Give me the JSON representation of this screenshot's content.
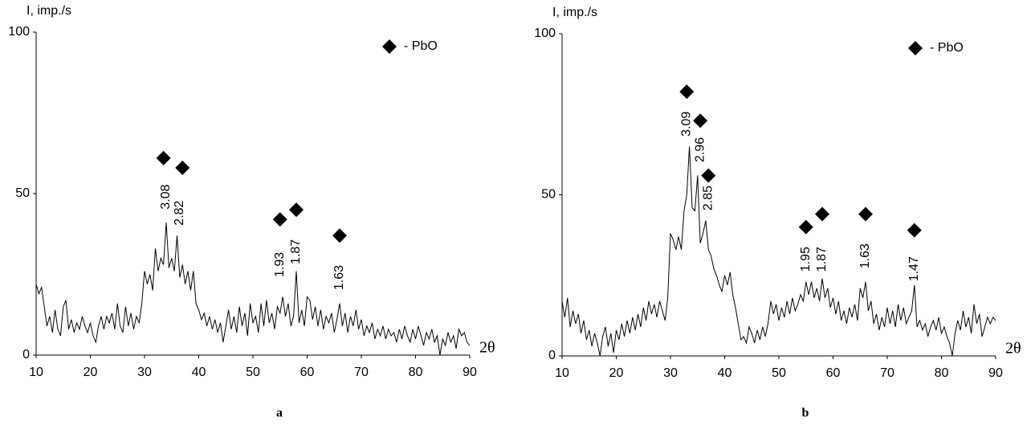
{
  "chart_data": [
    {
      "type": "line",
      "caption": "a",
      "y_label": "I, imp./s",
      "x_label": "2θ",
      "legend_label": "- PbO",
      "color": "#000000",
      "xlim": [
        10,
        90
      ],
      "ylim": [
        0,
        100
      ],
      "xticks": [
        10,
        20,
        30,
        40,
        50,
        60,
        70,
        80,
        90
      ],
      "yticks": [
        0,
        50,
        100
      ],
      "x": [
        10,
        10.5,
        11,
        11.5,
        12,
        12.5,
        13,
        13.5,
        14,
        14.5,
        15,
        15.5,
        16,
        16.5,
        17,
        17.5,
        18,
        18.5,
        19,
        19.5,
        20,
        20.5,
        21,
        21.5,
        22,
        22.5,
        23,
        23.5,
        24,
        24.5,
        25,
        25.5,
        26,
        26.5,
        27,
        27.5,
        28,
        28.5,
        29,
        29.5,
        30,
        30.5,
        31,
        31.5,
        32,
        32.5,
        33,
        33.5,
        34,
        34.5,
        35,
        35.5,
        36,
        36.5,
        37,
        37.5,
        38,
        38.5,
        39,
        39.5,
        40,
        40.5,
        41,
        41.5,
        42,
        42.5,
        43,
        43.5,
        44,
        44.5,
        45,
        45.5,
        46,
        46.5,
        47,
        47.5,
        48,
        48.5,
        49,
        49.5,
        50,
        50.5,
        51,
        51.5,
        52,
        52.5,
        53,
        53.5,
        54,
        54.5,
        55,
        55.5,
        56,
        56.5,
        57,
        57.5,
        58,
        58.5,
        59,
        59.5,
        60,
        60.5,
        61,
        61.5,
        62,
        62.5,
        63,
        63.5,
        64,
        64.5,
        65,
        65.5,
        66,
        66.5,
        67,
        67.5,
        68,
        68.5,
        69,
        69.5,
        70,
        70.5,
        71,
        71.5,
        72,
        72.5,
        73,
        73.5,
        74,
        74.5,
        75,
        75.5,
        76,
        76.5,
        77,
        77.5,
        78,
        78.5,
        79,
        79.5,
        80,
        80.5,
        81,
        81.5,
        82,
        82.5,
        83,
        83.5,
        84,
        84.5,
        85,
        85.5,
        86,
        86.5,
        87,
        87.5,
        88,
        88.5,
        89,
        89.5,
        90
      ],
      "values": [
        22,
        19,
        21,
        15,
        9,
        12,
        7,
        14,
        8,
        6,
        15,
        17,
        8,
        11,
        7,
        10,
        8,
        12,
        9,
        7,
        10,
        6,
        4,
        9,
        12,
        8,
        12,
        10,
        13,
        8,
        16,
        9,
        7,
        15,
        9,
        13,
        8,
        12,
        10,
        16,
        26,
        22,
        25,
        20,
        33,
        26,
        30,
        28,
        41,
        27,
        30,
        26,
        37,
        24,
        28,
        22,
        26,
        20,
        26,
        16,
        14,
        11,
        13,
        9,
        12,
        8,
        11,
        7,
        10,
        4,
        9,
        14,
        8,
        12,
        7,
        15,
        9,
        13,
        6,
        16,
        10,
        12,
        7,
        16,
        9,
        17,
        10,
        13,
        8,
        15,
        13,
        18,
        12,
        16,
        9,
        12,
        26,
        10,
        14,
        9,
        18,
        17,
        11,
        15,
        9,
        14,
        8,
        12,
        10,
        13,
        7,
        11,
        16,
        9,
        13,
        7,
        12,
        9,
        14,
        8,
        11,
        6,
        9,
        7,
        10,
        5,
        8,
        6,
        9,
        5,
        8,
        6,
        7,
        4,
        8,
        5,
        9,
        6,
        4,
        8,
        5,
        9,
        6,
        3,
        7,
        5,
        8,
        4,
        6,
        0,
        5,
        3,
        7,
        4,
        6,
        2,
        8,
        6,
        7,
        4,
        3
      ],
      "markers": [
        {
          "x": 33.5,
          "y": 61
        },
        {
          "x": 37,
          "y": 58
        },
        {
          "x": 55,
          "y": 42
        },
        {
          "x": 58,
          "y": 45
        },
        {
          "x": 66,
          "y": 37
        }
      ],
      "peak_labels": [
        {
          "x": 34,
          "y": 49,
          "label": 3.08
        },
        {
          "x": 36.5,
          "y": 44,
          "label": 2.82
        },
        {
          "x": 55,
          "y": 28,
          "label": 1.93
        },
        {
          "x": 58,
          "y": 32,
          "label": 1.87
        },
        {
          "x": 66,
          "y": 24,
          "label": 1.63
        }
      ]
    },
    {
      "type": "line",
      "caption": "b",
      "y_label": "I, imp./s",
      "x_label": "2θ",
      "legend_label": "- PbO",
      "color": "#000000",
      "xlim": [
        10,
        90
      ],
      "ylim": [
        0,
        100
      ],
      "xticks": [
        10,
        20,
        30,
        40,
        50,
        60,
        70,
        80,
        90
      ],
      "yticks": [
        0,
        50,
        100
      ],
      "x": [
        10,
        10.5,
        11,
        11.5,
        12,
        12.5,
        13,
        13.5,
        14,
        14.5,
        15,
        15.5,
        16,
        16.5,
        17,
        17.5,
        18,
        18.5,
        19,
        19.5,
        20,
        20.5,
        21,
        21.5,
        22,
        22.5,
        23,
        23.5,
        24,
        24.5,
        25,
        25.5,
        26,
        26.5,
        27,
        27.5,
        28,
        28.5,
        29,
        29.5,
        30,
        30.5,
        31,
        31.5,
        32,
        32.5,
        33,
        33.5,
        34,
        34.5,
        35,
        35.5,
        36,
        36.5,
        37,
        37.5,
        38,
        38.5,
        39,
        39.5,
        40,
        40.5,
        41,
        41.5,
        42,
        42.5,
        43,
        43.5,
        44,
        44.5,
        45,
        45.5,
        46,
        46.5,
        47,
        47.5,
        48,
        48.5,
        49,
        49.5,
        50,
        50.5,
        51,
        51.5,
        52,
        52.5,
        53,
        53.5,
        54,
        54.5,
        55,
        55.5,
        56,
        56.5,
        57,
        57.5,
        58,
        58.5,
        59,
        59.5,
        60,
        60.5,
        61,
        61.5,
        62,
        62.5,
        63,
        63.5,
        64,
        64.5,
        65,
        65.5,
        66,
        66.5,
        67,
        67.5,
        68,
        68.5,
        69,
        69.5,
        70,
        70.5,
        71,
        71.5,
        72,
        72.5,
        73,
        73.5,
        74,
        74.5,
        75,
        75.5,
        76,
        76.5,
        77,
        77.5,
        78,
        78.5,
        79,
        79.5,
        80,
        80.5,
        81,
        81.5,
        82,
        82.5,
        83,
        83.5,
        84,
        84.5,
        85,
        85.5,
        86,
        86.5,
        87,
        87.5,
        88,
        88.5,
        89,
        89.5,
        90
      ],
      "values": [
        17,
        12,
        18,
        9,
        14,
        10,
        13,
        7,
        11,
        5,
        8,
        3,
        7,
        4,
        0,
        6,
        9,
        3,
        7,
        1,
        8,
        5,
        10,
        6,
        11,
        7,
        12,
        8,
        13,
        9,
        15,
        11,
        17,
        13,
        16,
        12,
        17,
        14,
        11,
        18,
        38,
        36,
        33,
        37,
        33,
        45,
        50,
        65,
        46,
        45,
        56,
        35,
        38,
        42,
        33,
        31,
        27,
        25,
        22,
        20,
        25,
        22,
        26,
        19,
        15,
        10,
        5,
        6,
        4,
        9,
        7,
        4,
        8,
        5,
        9,
        6,
        10,
        17,
        13,
        16,
        11,
        15,
        12,
        17,
        13,
        18,
        14,
        16,
        19,
        17,
        23,
        19,
        23,
        18,
        21,
        17,
        24,
        18,
        21,
        15,
        18,
        13,
        17,
        11,
        14,
        10,
        15,
        12,
        16,
        11,
        21,
        18,
        23,
        14,
        17,
        10,
        13,
        8,
        12,
        9,
        15,
        10,
        14,
        9,
        16,
        11,
        15,
        10,
        12,
        14,
        22,
        9,
        11,
        8,
        10,
        6,
        9,
        11,
        8,
        12,
        7,
        9,
        6,
        4,
        0,
        7,
        11,
        8,
        14,
        9,
        12,
        7,
        16,
        10,
        13,
        6,
        9,
        12,
        10,
        12,
        11
      ],
      "markers": [
        {
          "x": 33,
          "y": 82
        },
        {
          "x": 35.5,
          "y": 73
        },
        {
          "x": 37,
          "y": 56
        },
        {
          "x": 55,
          "y": 40
        },
        {
          "x": 58,
          "y": 44
        },
        {
          "x": 66,
          "y": 44
        },
        {
          "x": 75,
          "y": 39
        }
      ],
      "peak_labels": [
        {
          "x": 33,
          "y": 72,
          "label": 3.09
        },
        {
          "x": 35.5,
          "y": 64,
          "label": 2.96
        },
        {
          "x": 37,
          "y": 49,
          "label": 2.85
        },
        {
          "x": 55,
          "y": 30,
          "label": 1.95
        },
        {
          "x": 58,
          "y": 30,
          "label": 1.87
        },
        {
          "x": 66,
          "y": 31,
          "label": 1.63
        },
        {
          "x": 75,
          "y": 27,
          "label": 1.47
        }
      ]
    }
  ]
}
